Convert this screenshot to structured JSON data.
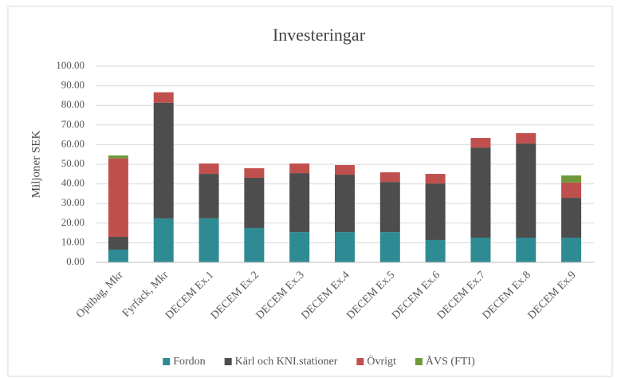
{
  "chart_data": {
    "type": "stacked_bar",
    "title": "Investeringar",
    "y_label": "Miljoner SEK",
    "categories": [
      "Optibag, Mkr",
      "Fyrfack, Mkr",
      "DECEM Ex.1",
      "DECEM Ex.2",
      "DECEM Ex.3",
      "DECEM Ex.4",
      "DECEM Ex.5",
      "DECEM Ex.6",
      "DECEM Ex.7",
      "DECEM Ex.8",
      "DECEM Ex.9"
    ],
    "series": [
      {
        "name": "Fordon",
        "color": "#2e8b93",
        "values": [
          6.5,
          22.4,
          22.5,
          17.5,
          15.4,
          15.4,
          15.4,
          11.4,
          12.6,
          12.6,
          12.6
        ]
      },
      {
        "name": "Kärl och KNI.stationer",
        "color": "#4d4d4d",
        "values": [
          6.5,
          59.0,
          22.6,
          25.6,
          30.1,
          29.3,
          25.6,
          28.8,
          45.9,
          48.0,
          20.3
        ]
      },
      {
        "name": "Övrigt",
        "color": "#c0504d",
        "values": [
          40.0,
          5.3,
          5.3,
          4.9,
          4.9,
          4.9,
          4.9,
          4.9,
          4.9,
          5.3,
          7.8
        ]
      },
      {
        "name": "ÅVS (FTI)",
        "color": "#6e9a3a",
        "values": [
          1.5,
          null,
          null,
          null,
          null,
          null,
          null,
          null,
          null,
          null,
          3.6
        ]
      }
    ],
    "ylim": [
      0,
      100
    ],
    "yticks": [
      {
        "value": 0,
        "label": "0.00"
      },
      {
        "value": 10,
        "label": "10.00"
      },
      {
        "value": 20,
        "label": "20.00"
      },
      {
        "value": 30,
        "label": "30.00"
      },
      {
        "value": 40,
        "label": "40.00"
      },
      {
        "value": 50,
        "label": "50.00"
      },
      {
        "value": 60,
        "label": "60.00"
      },
      {
        "value": 70,
        "label": "70.00"
      },
      {
        "value": 80,
        "label": "80.00"
      },
      {
        "value": 90,
        "label": "90.00"
      },
      {
        "value": 100,
        "label": "100.00"
      }
    ],
    "grid": true,
    "legend": "bottom"
  }
}
